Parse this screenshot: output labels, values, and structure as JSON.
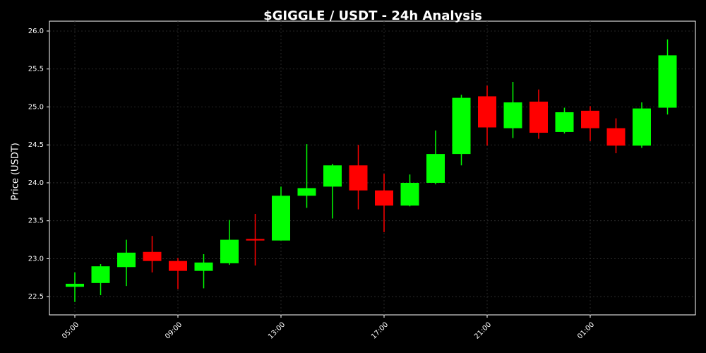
{
  "chart_data": {
    "type": "candlestick",
    "title": "$GIGGLE / USDT - 24h Analysis",
    "y_label": "Price (USDT)",
    "categories": [
      "05:00",
      null,
      null,
      null,
      "09:00",
      null,
      null,
      null,
      "13:00",
      null,
      null,
      null,
      "17:00",
      null,
      null,
      null,
      "21:00",
      null,
      null,
      null,
      "01:00",
      null,
      null,
      null
    ],
    "open": [
      22.63,
      22.68,
      22.89,
      23.09,
      22.97,
      22.84,
      22.94,
      23.26,
      23.24,
      23.83,
      23.95,
      24.23,
      23.9,
      23.7,
      24.0,
      24.38,
      25.14,
      24.72,
      25.07,
      24.67,
      24.95,
      24.72,
      24.49,
      24.99
    ],
    "high": [
      22.82,
      22.93,
      23.25,
      23.3,
      23.01,
      23.06,
      23.51,
      23.59,
      23.95,
      24.51,
      24.25,
      24.5,
      24.12,
      24.11,
      24.69,
      25.16,
      25.28,
      25.33,
      25.23,
      24.99,
      25.01,
      24.85,
      25.06,
      25.89
    ],
    "low": [
      22.43,
      22.52,
      22.64,
      22.82,
      22.6,
      22.61,
      22.92,
      22.91,
      23.24,
      23.67,
      23.53,
      23.65,
      23.35,
      23.69,
      23.98,
      24.23,
      24.49,
      24.59,
      24.58,
      24.65,
      24.55,
      24.39,
      24.46,
      24.9
    ],
    "close": [
      22.67,
      22.9,
      23.08,
      22.97,
      22.84,
      22.95,
      23.25,
      23.24,
      23.83,
      23.93,
      24.23,
      23.9,
      23.7,
      24.0,
      24.38,
      25.12,
      24.73,
      25.06,
      24.66,
      24.93,
      24.72,
      24.49,
      24.98,
      25.68
    ],
    "up_color": "#00ff00",
    "down_color": "#ff0000",
    "ylim": [
      22.26,
      26.13
    ],
    "yticks": [
      22.5,
      {
        "value": 23,
        "label": "23.0"
      },
      23.5,
      {
        "value": 24,
        "label": "24.0"
      },
      24.5,
      {
        "value": 25,
        "label": "25.0"
      },
      25.5,
      {
        "value": 26,
        "label": "26.0"
      }
    ],
    "grid": true
  }
}
